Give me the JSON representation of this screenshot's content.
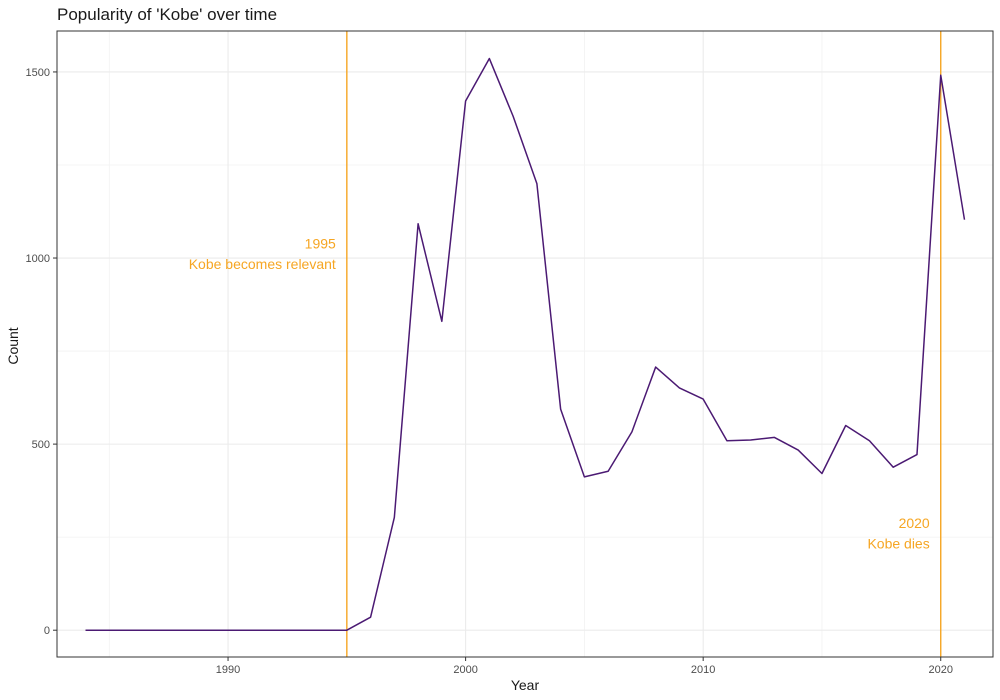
{
  "chart_data": {
    "type": "line",
    "title": "Popularity of 'Kobe' over time",
    "xlabel": "Year",
    "ylabel": "Count",
    "xlim": [
      1982.8,
      2022.2
    ],
    "ylim": [
      -72,
      1610
    ],
    "x_ticks": [
      1990,
      2000,
      2010,
      2020
    ],
    "y_ticks": [
      0,
      500,
      1000,
      1500
    ],
    "x_tick_labels": [
      "1990",
      "2000",
      "2010",
      "2020"
    ],
    "y_tick_labels": [
      "0",
      "500",
      "1000",
      "1500"
    ],
    "grid": true,
    "series": [
      {
        "color": "#4b1a73",
        "x": [
          1984,
          1985,
          1986,
          1987,
          1988,
          1989,
          1990,
          1991,
          1992,
          1993,
          1994,
          1995,
          1996,
          1997,
          1998,
          1999,
          2000,
          2001,
          2002,
          2003,
          2004,
          2005,
          2006,
          2007,
          2008,
          2009,
          2010,
          2011,
          2012,
          2013,
          2014,
          2015,
          2016,
          2017,
          2018,
          2019,
          2020,
          2021
        ],
        "y": [
          0,
          0,
          0,
          0,
          0,
          0,
          0,
          0,
          0,
          0,
          0,
          0,
          35,
          303,
          1092,
          830,
          1422,
          1536,
          1381,
          1200,
          594,
          412,
          427,
          533,
          707,
          651,
          621,
          509,
          511,
          518,
          484,
          421,
          550,
          509,
          438,
          472,
          1491,
          1103
        ]
      }
    ],
    "annotations": [
      {
        "x": 1995,
        "color": "#f6a623",
        "line1": "1995",
        "line2": "Kobe becomes relevant",
        "y_line1": 1025,
        "y_line2": 970
      },
      {
        "x": 2020,
        "color": "#f6a623",
        "line1": "2020",
        "line2": "Kobe dies",
        "y_line1": 275,
        "y_line2": 220
      }
    ]
  }
}
